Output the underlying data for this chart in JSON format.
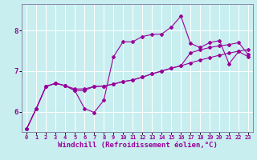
{
  "xlabel": "Windchill (Refroidissement éolien,°C)",
  "bg_color": "#c8eef0",
  "line_color": "#990099",
  "grid_color": "#ffffff",
  "xlim": [
    -0.5,
    23.5
  ],
  "ylim": [
    5.5,
    8.65
  ],
  "yticks": [
    6,
    7,
    8
  ],
  "xticks": [
    0,
    1,
    2,
    3,
    4,
    5,
    6,
    7,
    8,
    9,
    10,
    11,
    12,
    13,
    14,
    15,
    16,
    17,
    18,
    19,
    20,
    21,
    22,
    23
  ],
  "line1_y": [
    5.58,
    6.08,
    6.62,
    6.7,
    6.64,
    6.56,
    6.56,
    6.62,
    6.63,
    6.68,
    6.74,
    6.78,
    6.85,
    6.93,
    7.0,
    7.07,
    7.13,
    7.2,
    7.27,
    7.33,
    7.39,
    7.44,
    7.49,
    7.53
  ],
  "line2_y": [
    5.58,
    6.08,
    6.62,
    6.7,
    6.64,
    6.52,
    6.08,
    5.98,
    6.28,
    7.35,
    7.72,
    7.72,
    7.85,
    7.9,
    7.91,
    8.08,
    8.35,
    7.68,
    7.58,
    7.7,
    7.75,
    7.18,
    7.48,
    7.35
  ],
  "line3_y": [
    5.58,
    6.08,
    6.62,
    6.7,
    6.64,
    6.52,
    6.52,
    6.62,
    6.63,
    6.68,
    6.74,
    6.78,
    6.85,
    6.93,
    7.0,
    7.07,
    7.13,
    7.45,
    7.52,
    7.58,
    7.62,
    7.65,
    7.7,
    7.4
  ],
  "font_size_label": 6.5,
  "font_size_tick_x": 5.0,
  "font_size_tick_y": 6.5,
  "markersize": 2.0,
  "linewidth": 0.8
}
